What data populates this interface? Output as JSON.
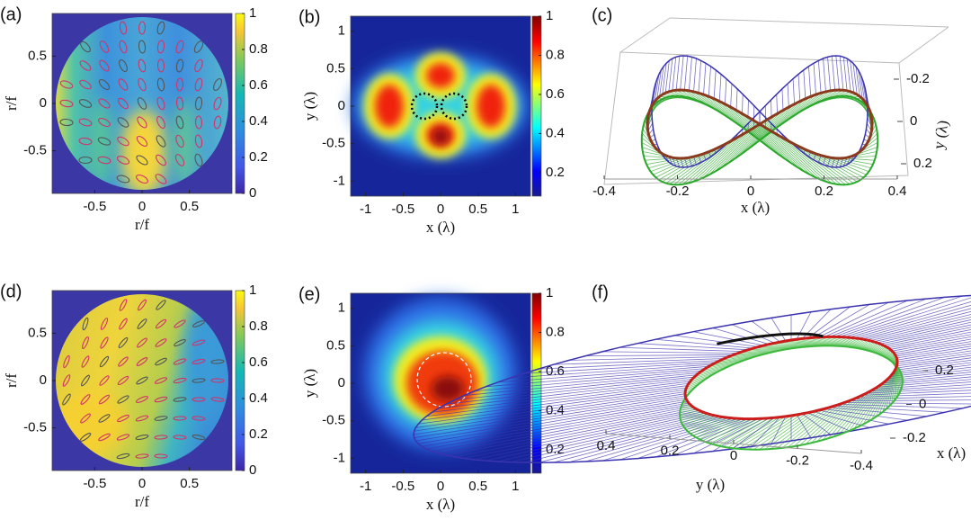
{
  "chart_data": [
    {
      "type": "heatmap",
      "label": "(a)",
      "xlabel": "r/f",
      "ylabel": "r/f",
      "xlim": [
        -0.95,
        0.95
      ],
      "ylim": [
        -0.95,
        0.95
      ],
      "xticks": [
        -0.5,
        0,
        0.5
      ],
      "yticks": [
        -0.5,
        0,
        0.5
      ],
      "colormap": "parula",
      "clim": [
        0,
        1
      ],
      "cticks": [
        0,
        0.2,
        0.4,
        0.6,
        0.8,
        1
      ]
    },
    {
      "type": "heatmap",
      "label": "(b)",
      "xlabel": "x (λ)",
      "ylabel": "y (λ)",
      "xlim": [
        -1.2,
        1.2
      ],
      "ylim": [
        -1.2,
        1.2
      ],
      "xticks": [
        -1,
        -0.5,
        0,
        0.5,
        1
      ],
      "yticks": [
        -1,
        -0.5,
        0,
        0.5,
        1
      ],
      "colormap": "jet",
      "clim": [
        0.08,
        1
      ],
      "cticks": [
        0.2,
        0.4,
        0.6,
        0.8,
        1
      ]
    },
    {
      "type": "trajectory3d",
      "label": "(c)",
      "xlabel": "x (λ)",
      "ylabel": "y (λ)",
      "xlim": [
        -0.4,
        0.4
      ],
      "ylim": [
        -0.2,
        0.2
      ],
      "xticks": [
        -0.4,
        -0.2,
        0,
        0.2,
        0.4
      ],
      "yticks": [
        -0.2,
        0,
        0.2
      ]
    },
    {
      "type": "heatmap",
      "label": "(d)",
      "xlabel": "r/f",
      "ylabel": "r/f",
      "xlim": [
        -0.95,
        0.95
      ],
      "ylim": [
        -0.95,
        0.95
      ],
      "xticks": [
        -0.5,
        0,
        0.5
      ],
      "yticks": [
        -0.5,
        0,
        0.5
      ],
      "colormap": "parula",
      "clim": [
        0,
        1
      ],
      "cticks": [
        0,
        0.2,
        0.4,
        0.6,
        0.8,
        1
      ]
    },
    {
      "type": "heatmap",
      "label": "(e)",
      "xlabel": "x (λ)",
      "ylabel": "y (λ)",
      "xlim": [
        -1.2,
        1.2
      ],
      "ylim": [
        -1.2,
        1.2
      ],
      "xticks": [
        -1,
        -0.5,
        0,
        0.5,
        1
      ],
      "yticks": [
        -1,
        -0.5,
        0,
        0.5,
        1
      ],
      "colormap": "jet",
      "clim": [
        0.08,
        1
      ],
      "cticks": [
        0.2,
        0.4,
        0.6,
        0.8,
        1
      ]
    },
    {
      "type": "trajectory3d",
      "label": "(f)",
      "xlabel": "y (λ)",
      "ylabel": "x (λ)",
      "xlim": [
        -0.4,
        0.4
      ],
      "ylim": [
        -0.2,
        0.2
      ],
      "xticks": [
        0.4,
        0.2,
        0,
        -0.2,
        -0.4
      ],
      "yticks": [
        0.2,
        0,
        -0.2
      ]
    }
  ]
}
